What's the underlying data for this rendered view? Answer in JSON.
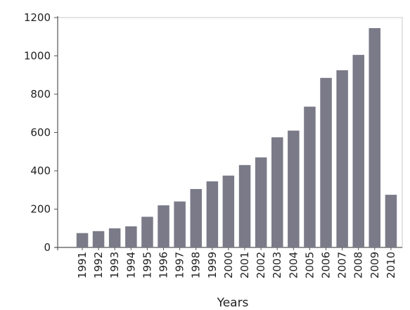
{
  "chart_data": {
    "type": "bar",
    "xlabel": "Years",
    "ylabel": "",
    "ylim": [
      0,
      1200
    ],
    "yticks": [
      0,
      200,
      400,
      600,
      800,
      1000,
      1200
    ],
    "grid": false,
    "bar_color": "#7a7a88",
    "categories": [
      "1991",
      "1992",
      "1993",
      "1994",
      "1995",
      "1996",
      "1997",
      "1998",
      "1999",
      "2000",
      "2001",
      "2002",
      "2003",
      "2004",
      "2005",
      "2006",
      "2007",
      "2008",
      "2009",
      "2010"
    ],
    "values": [
      75,
      85,
      100,
      110,
      160,
      220,
      240,
      305,
      345,
      375,
      430,
      470,
      575,
      610,
      735,
      885,
      925,
      1005,
      1145,
      275
    ]
  }
}
